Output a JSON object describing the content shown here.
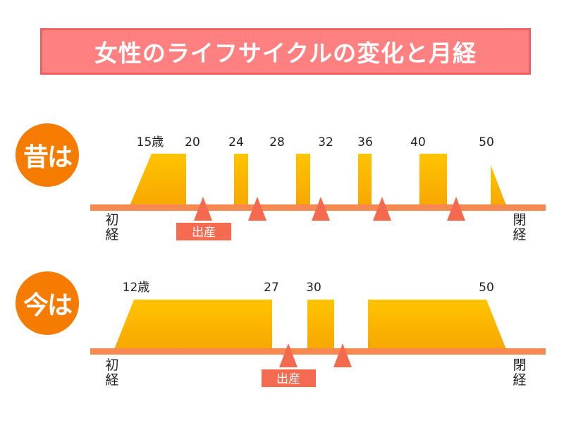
{
  "title": "女性のライフサイクルの変化と月経",
  "colors": {
    "title_bg": "#ff8080",
    "era_circle": "#f57c00",
    "timeline": "#f5894f",
    "block_top": "#ffc400",
    "block_bottom": "#f7a600",
    "marker": "#f5694f",
    "birth_label_bg": "#f56b52"
  },
  "rows": [
    {
      "era_label": "昔は",
      "start_label": [
        "初",
        "経"
      ],
      "end_label": [
        "閉",
        "経"
      ],
      "age_labels": [
        {
          "text": "15歳",
          "age": 15
        },
        {
          "text": "20",
          "age": 20
        },
        {
          "text": "24",
          "age": 24
        },
        {
          "text": "28",
          "age": 28
        },
        {
          "text": "32",
          "age": 32
        },
        {
          "text": "36",
          "age": 36
        },
        {
          "text": "40",
          "age": 40
        },
        {
          "text": "50",
          "age": 50
        }
      ],
      "birth_label": "出産"
    },
    {
      "era_label": "今は",
      "start_label": [
        "初",
        "経"
      ],
      "end_label": [
        "閉",
        "経"
      ],
      "age_labels": [
        {
          "text": "12歳",
          "age": 12
        },
        {
          "text": "27",
          "age": 27
        },
        {
          "text": "30",
          "age": 30
        },
        {
          "text": "50",
          "age": 50
        }
      ],
      "birth_label": "出産"
    }
  ]
}
